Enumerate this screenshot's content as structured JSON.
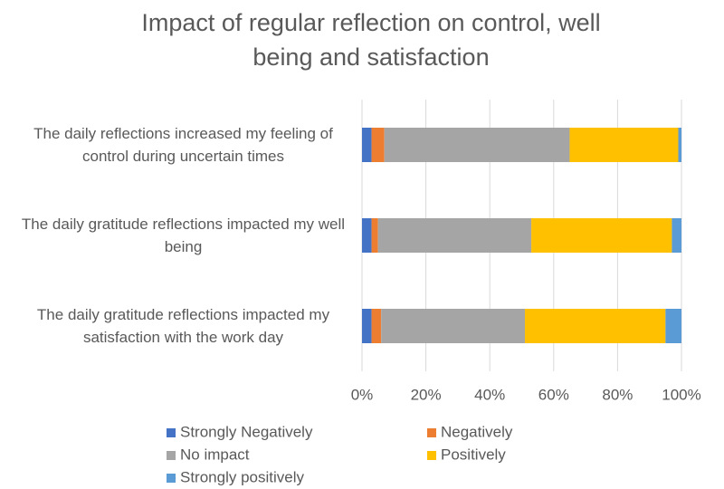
{
  "chart_data": {
    "type": "stacked-bar-horizontal",
    "title": "Impact of regular reflection on control, well being and satisfaction",
    "categories": [
      "The daily reflections increased my feeling of control during uncertain times",
      "The daily gratitude reflections impacted my well being",
      "The daily gratitude reflections impacted my satisfaction with the work day"
    ],
    "series": [
      {
        "name": "Strongly Negatively",
        "color": "#4472c4",
        "values": [
          3,
          3,
          3
        ]
      },
      {
        "name": "Negatively",
        "color": "#ed7d31",
        "values": [
          4,
          2,
          3
        ]
      },
      {
        "name": "No impact",
        "color": "#a5a5a5",
        "values": [
          58,
          48,
          45
        ]
      },
      {
        "name": "Positively",
        "color": "#ffc000",
        "values": [
          34,
          44,
          44
        ]
      },
      {
        "name": "Strongly positively",
        "color": "#5b9bd5",
        "values": [
          1,
          3,
          5
        ]
      }
    ],
    "xlim": [
      0,
      100
    ],
    "xticks": [
      {
        "value": 0,
        "label": "0%"
      },
      {
        "value": 20,
        "label": "20%"
      },
      {
        "value": 40,
        "label": "40%"
      },
      {
        "value": 60,
        "label": "60%"
      },
      {
        "value": 80,
        "label": "80%"
      },
      {
        "value": 100,
        "label": "100%"
      }
    ],
    "grid": true,
    "legend": "bottom"
  }
}
